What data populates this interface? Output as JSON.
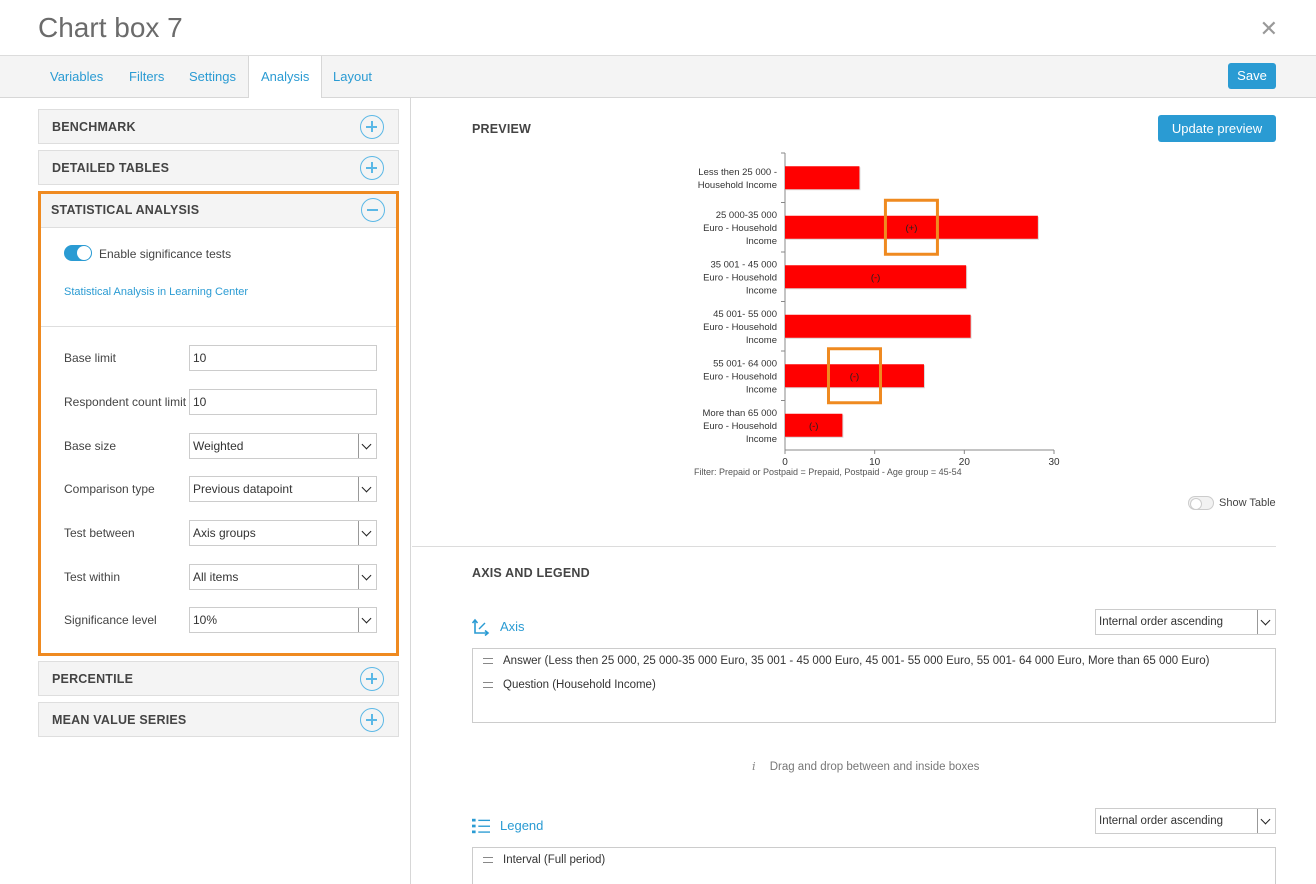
{
  "header": {
    "title": "Chart box 7"
  },
  "tabs": [
    "Variables",
    "Filters",
    "Settings",
    "Analysis",
    "Layout"
  ],
  "toolbar": {
    "save_label": "Save"
  },
  "sidebar": {
    "sections": {
      "benchmark": "BENCHMARK",
      "detailed_tables": "DETAILED TABLES",
      "statistical_analysis": "STATISTICAL ANALYSIS",
      "percentile": "PERCENTILE",
      "mean_value_series": "MEAN VALUE SERIES"
    },
    "stats": {
      "toggle_label": "Enable significance tests",
      "toggle_on": true,
      "learning_link": "Statistical Analysis in Learning Center",
      "base_limit_label": "Base limit",
      "base_limit_value": "10",
      "respondent_label": "Respondent count limit",
      "respondent_value": "10",
      "base_size_label": "Base size",
      "base_size_value": "Weighted",
      "comparison_label": "Comparison type",
      "comparison_value": "Previous datapoint",
      "test_between_label": "Test between",
      "test_between_value": "Axis groups",
      "test_within_label": "Test within",
      "test_within_value": "All items",
      "significance_label": "Significance level",
      "significance_value": "10%"
    }
  },
  "preview": {
    "title": "PREVIEW",
    "update_label": "Update preview",
    "filter_text": "Filter: Prepaid or Postpaid = Prepaid, Postpaid - Age group = 45-54",
    "show_table_label": "Show Table",
    "show_table_on": false
  },
  "axis_legend": {
    "title": "AXIS AND LEGEND",
    "axis_label": "Axis",
    "axis_order": "Internal order ascending",
    "axis_items": [
      "Answer (Less then 25 000, 25 000-35 000 Euro, 35 001 - 45 000 Euro, 45 001- 55 000 Euro, 55 001- 64 000 Euro, More than 65 000 Euro)",
      "Question (Household Income)"
    ],
    "hint": "Drag and drop between and inside boxes",
    "legend_label": "Legend",
    "legend_order": "Internal order ascending",
    "legend_items": [
      "Interval (Full period)"
    ]
  },
  "colors": {
    "accent": "#2a9bd3",
    "highlight": "#ef8a20",
    "bar": "#ff0000"
  },
  "chart_data": {
    "type": "bar",
    "orientation": "horizontal",
    "categories": [
      [
        "Less then 25 000 -",
        "Household Income"
      ],
      [
        "25 000-35 000",
        "Euro - Household",
        "Income"
      ],
      [
        "35 001 - 45 000",
        "Euro - Household",
        "Income"
      ],
      [
        "45 001- 55 000",
        "Euro - Household",
        "Income"
      ],
      [
        "55 001- 64 000",
        "Euro - Household",
        "Income"
      ],
      [
        "More than 65 000",
        "Euro - Household",
        "Income"
      ]
    ],
    "values": [
      8.3,
      28.2,
      20.2,
      20.7,
      15.5,
      6.4
    ],
    "significance": [
      "",
      "(+)",
      "(-)",
      "",
      "(-)",
      "(-)"
    ],
    "highlighted": [
      false,
      true,
      false,
      false,
      true,
      false
    ],
    "xlim": [
      0,
      30
    ],
    "xticks": [
      0,
      10,
      20,
      30
    ],
    "grid": false
  }
}
